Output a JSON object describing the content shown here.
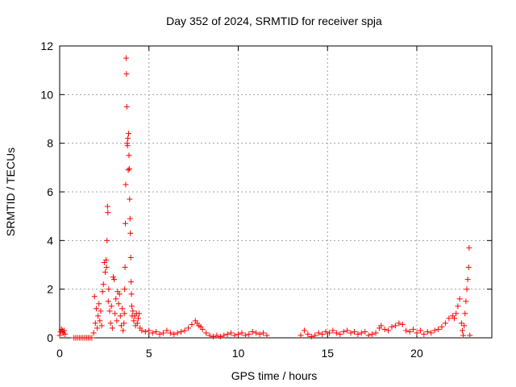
{
  "chart_data": {
    "type": "scatter",
    "title": "Day 352 of 2024, SRMTID for receiver spja",
    "xlabel": "GPS time / hours",
    "ylabel": "SRMTID / TECUs",
    "xlim": [
      0,
      24.2
    ],
    "ylim": [
      0,
      12
    ],
    "xticks": [
      0,
      5,
      10,
      15,
      20
    ],
    "yticks": [
      0,
      2,
      4,
      6,
      8,
      10,
      12
    ],
    "grid": true,
    "marker": "+",
    "colors": {
      "series": "#ff0000",
      "axis": "#000000",
      "grid": "#a0a0a0"
    },
    "series": [
      {
        "points": [
          [
            0.0,
            0.1
          ],
          [
            0.05,
            0.25
          ],
          [
            0.1,
            0.35
          ],
          [
            0.15,
            0.3
          ],
          [
            0.2,
            0.2
          ],
          [
            0.25,
            0.3
          ],
          [
            0.3,
            0.15
          ],
          [
            0.8,
            0.0
          ],
          [
            0.9,
            0.0
          ],
          [
            1.0,
            0.0
          ],
          [
            1.1,
            0.0
          ],
          [
            1.2,
            0.0
          ],
          [
            1.3,
            0.0
          ],
          [
            1.4,
            0.0
          ],
          [
            1.5,
            0.0
          ],
          [
            1.6,
            0.0
          ],
          [
            1.7,
            0.0
          ],
          [
            1.8,
            0.0
          ],
          [
            1.9,
            0.2
          ],
          [
            1.95,
            1.7
          ],
          [
            2.0,
            0.6
          ],
          [
            2.05,
            1.2
          ],
          [
            2.1,
            0.4
          ],
          [
            2.15,
            0.9
          ],
          [
            2.2,
            1.4
          ],
          [
            2.25,
            0.7
          ],
          [
            2.3,
            1.1
          ],
          [
            2.35,
            0.5
          ],
          [
            2.4,
            1.9
          ],
          [
            2.45,
            2.2
          ],
          [
            2.5,
            3.1
          ],
          [
            2.55,
            2.7
          ],
          [
            2.6,
            3.2
          ],
          [
            2.62,
            2.9
          ],
          [
            2.65,
            4.0
          ],
          [
            2.68,
            5.4
          ],
          [
            2.7,
            5.15
          ],
          [
            2.72,
            1.5
          ],
          [
            2.75,
            2.0
          ],
          [
            2.8,
            1.1
          ],
          [
            2.85,
            0.6
          ],
          [
            2.9,
            1.3
          ],
          [
            2.95,
            0.4
          ],
          [
            3.0,
            2.5
          ],
          [
            3.05,
            2.4
          ],
          [
            3.1,
            1.0
          ],
          [
            3.15,
            1.6
          ],
          [
            3.2,
            0.7
          ],
          [
            3.25,
            1.9
          ],
          [
            3.3,
            1.4
          ],
          [
            3.35,
            1.8
          ],
          [
            3.4,
            0.9
          ],
          [
            3.45,
            0.5
          ],
          [
            3.5,
            1.2
          ],
          [
            3.55,
            0.3
          ],
          [
            3.6,
            0.6
          ],
          [
            3.62,
            1.0
          ],
          [
            3.64,
            2.0
          ],
          [
            3.66,
            2.9
          ],
          [
            3.68,
            4.7
          ],
          [
            3.7,
            6.3
          ],
          [
            3.72,
            11.5
          ],
          [
            3.74,
            10.85
          ],
          [
            3.76,
            9.5
          ],
          [
            3.78,
            8.0
          ],
          [
            3.8,
            7.9
          ],
          [
            3.82,
            8.2
          ],
          [
            3.84,
            6.9
          ],
          [
            3.86,
            8.4
          ],
          [
            3.88,
            7.5
          ],
          [
            3.9,
            6.95
          ],
          [
            3.92,
            5.7
          ],
          [
            3.94,
            4.9
          ],
          [
            3.96,
            4.3
          ],
          [
            3.98,
            3.3
          ],
          [
            4.0,
            2.3
          ],
          [
            4.02,
            1.8
          ],
          [
            4.04,
            1.3
          ],
          [
            4.06,
            0.9
          ],
          [
            4.1,
            1.1
          ],
          [
            4.15,
            0.7
          ],
          [
            4.2,
            0.9
          ],
          [
            4.25,
            0.5
          ],
          [
            4.3,
            1.0
          ],
          [
            4.35,
            0.6
          ],
          [
            4.4,
            0.8
          ],
          [
            4.45,
            1.0
          ],
          [
            4.5,
            0.4
          ],
          [
            4.6,
            0.3
          ],
          [
            4.8,
            0.25
          ],
          [
            5.0,
            0.3
          ],
          [
            5.2,
            0.2
          ],
          [
            5.4,
            0.25
          ],
          [
            5.6,
            0.15
          ],
          [
            5.8,
            0.2
          ],
          [
            6.0,
            0.3
          ],
          [
            6.2,
            0.2
          ],
          [
            6.4,
            0.15
          ],
          [
            6.6,
            0.2
          ],
          [
            6.8,
            0.25
          ],
          [
            7.0,
            0.3
          ],
          [
            7.2,
            0.4
          ],
          [
            7.4,
            0.55
          ],
          [
            7.6,
            0.7
          ],
          [
            7.7,
            0.6
          ],
          [
            7.8,
            0.5
          ],
          [
            7.9,
            0.45
          ],
          [
            8.0,
            0.35
          ],
          [
            8.2,
            0.2
          ],
          [
            8.4,
            0.1
          ],
          [
            8.6,
            0.05
          ],
          [
            8.8,
            0.1
          ],
          [
            9.0,
            0.05
          ],
          [
            9.2,
            0.1
          ],
          [
            9.4,
            0.15
          ],
          [
            9.6,
            0.2
          ],
          [
            9.8,
            0.1
          ],
          [
            10.0,
            0.15
          ],
          [
            10.2,
            0.2
          ],
          [
            10.4,
            0.1
          ],
          [
            10.6,
            0.15
          ],
          [
            10.8,
            0.25
          ],
          [
            11.0,
            0.2
          ],
          [
            11.2,
            0.15
          ],
          [
            11.4,
            0.2
          ],
          [
            11.6,
            0.1
          ],
          [
            13.5,
            0.1
          ],
          [
            13.7,
            0.3
          ],
          [
            13.9,
            0.15
          ],
          [
            14.1,
            0.05
          ],
          [
            14.3,
            0.1
          ],
          [
            14.5,
            0.2
          ],
          [
            14.7,
            0.15
          ],
          [
            14.9,
            0.25
          ],
          [
            15.1,
            0.2
          ],
          [
            15.3,
            0.3
          ],
          [
            15.5,
            0.2
          ],
          [
            15.7,
            0.15
          ],
          [
            15.9,
            0.25
          ],
          [
            16.1,
            0.3
          ],
          [
            16.3,
            0.2
          ],
          [
            16.5,
            0.25
          ],
          [
            16.7,
            0.15
          ],
          [
            16.9,
            0.2
          ],
          [
            17.1,
            0.25
          ],
          [
            17.3,
            0.1
          ],
          [
            17.5,
            0.15
          ],
          [
            17.7,
            0.2
          ],
          [
            17.9,
            0.4
          ],
          [
            18.0,
            0.5
          ],
          [
            18.2,
            0.35
          ],
          [
            18.4,
            0.3
          ],
          [
            18.6,
            0.45
          ],
          [
            18.8,
            0.5
          ],
          [
            19.0,
            0.6
          ],
          [
            19.2,
            0.55
          ],
          [
            19.4,
            0.3
          ],
          [
            19.6,
            0.25
          ],
          [
            19.8,
            0.35
          ],
          [
            20.0,
            0.2
          ],
          [
            20.2,
            0.3
          ],
          [
            20.4,
            0.15
          ],
          [
            20.6,
            0.25
          ],
          [
            20.8,
            0.2
          ],
          [
            21.0,
            0.3
          ],
          [
            21.2,
            0.35
          ],
          [
            21.4,
            0.45
          ],
          [
            21.6,
            0.6
          ],
          [
            21.8,
            0.8
          ],
          [
            22.0,
            0.9
          ],
          [
            22.1,
            0.8
          ],
          [
            22.2,
            1.0
          ],
          [
            22.3,
            1.3
          ],
          [
            22.4,
            1.6
          ],
          [
            22.5,
            0.6
          ],
          [
            22.55,
            0.3
          ],
          [
            22.6,
            0.1
          ],
          [
            22.65,
            0.5
          ],
          [
            22.7,
            1.0
          ],
          [
            22.75,
            1.5
          ],
          [
            22.8,
            2.0
          ],
          [
            22.85,
            2.4
          ],
          [
            22.9,
            2.9
          ],
          [
            22.93,
            3.7
          ],
          [
            22.97,
            0.1
          ]
        ]
      }
    ]
  }
}
